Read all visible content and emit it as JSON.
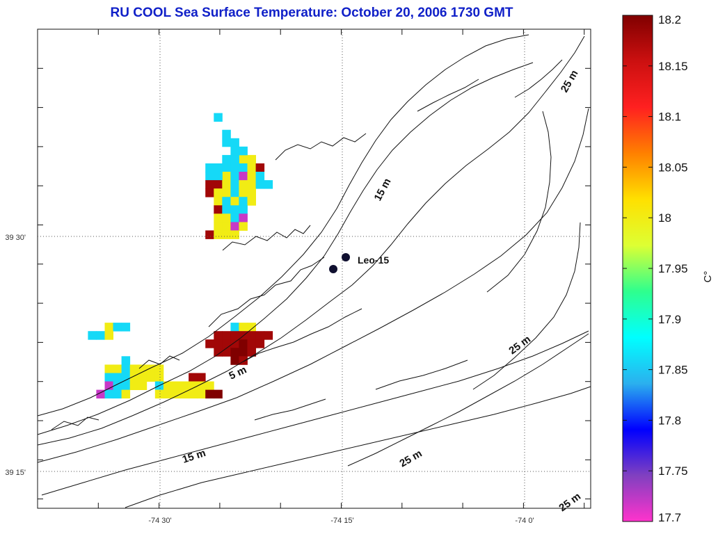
{
  "chart_data": {
    "type": "heatmap",
    "title": "RU COOL  Sea Surface Temperature:  October 20, 2006 1730 GMT",
    "x_ticks": [
      "-74 30'",
      "-74 15'",
      "-74 0'"
    ],
    "y_ticks": [
      "39 30'",
      "39 15'"
    ],
    "colorbar": {
      "unit": "C°",
      "min": 17.7,
      "max": 18.2,
      "ticks": [
        "18.2",
        "18.15",
        "18.1",
        "18.05",
        "18",
        "17.95",
        "17.9",
        "17.85",
        "17.8",
        "17.75",
        "17.7"
      ],
      "colors": [
        "#ff33cc",
        "#8040c0",
        "#0000ff",
        "#2bb0ee",
        "#00ffff",
        "#2eff8e",
        "#ddff33",
        "#ffe000",
        "#ff8000",
        "#ff2020",
        "#cc1010",
        "#800000"
      ]
    },
    "depth_labels": [
      "5 m",
      "15 m",
      "15 m",
      "25 m",
      "25 m",
      "25 m",
      "25 m"
    ],
    "station": "Leo-15",
    "sst_cells": [
      {
        "c": 21,
        "r": 10,
        "t": 17.86
      },
      {
        "c": 22,
        "r": 12,
        "t": 17.86
      },
      {
        "c": 22,
        "r": 13,
        "t": 17.86
      },
      {
        "c": 23,
        "r": 13,
        "t": 17.86
      },
      {
        "c": 24,
        "r": 15,
        "t": 18.0
      },
      {
        "c": 25,
        "r": 15,
        "t": 18.0
      },
      {
        "c": 23,
        "r": 15,
        "t": 17.86
      },
      {
        "c": 22,
        "r": 15,
        "t": 17.86
      },
      {
        "c": 24,
        "r": 14,
        "t": 17.86
      },
      {
        "c": 23,
        "r": 14,
        "t": 17.86
      },
      {
        "c": 24,
        "r": 16,
        "t": 17.86
      },
      {
        "c": 23,
        "r": 16,
        "t": 17.86
      },
      {
        "c": 25,
        "r": 16,
        "t": 18.0
      },
      {
        "c": 22,
        "r": 16,
        "t": 17.86
      },
      {
        "c": 21,
        "r": 16,
        "t": 17.86
      },
      {
        "c": 20,
        "r": 16,
        "t": 17.86
      },
      {
        "c": 26,
        "r": 16,
        "t": 18.18
      },
      {
        "c": 22,
        "r": 17,
        "t": 18.0
      },
      {
        "c": 21,
        "r": 17,
        "t": 17.86
      },
      {
        "c": 20,
        "r": 17,
        "t": 17.86
      },
      {
        "c": 23,
        "r": 17,
        "t": 17.86
      },
      {
        "c": 24,
        "r": 17,
        "t": 17.72
      },
      {
        "c": 25,
        "r": 17,
        "t": 18.0
      },
      {
        "c": 26,
        "r": 17,
        "t": 17.86
      },
      {
        "c": 20,
        "r": 18,
        "t": 18.18
      },
      {
        "c": 21,
        "r": 18,
        "t": 18.18
      },
      {
        "c": 22,
        "r": 18,
        "t": 18.0
      },
      {
        "c": 23,
        "r": 18,
        "t": 17.86
      },
      {
        "c": 24,
        "r": 18,
        "t": 18.0
      },
      {
        "c": 25,
        "r": 18,
        "t": 18.0
      },
      {
        "c": 26,
        "r": 18,
        "t": 17.86
      },
      {
        "c": 27,
        "r": 18,
        "t": 17.86
      },
      {
        "c": 20,
        "r": 19,
        "t": 18.18
      },
      {
        "c": 21,
        "r": 19,
        "t": 18.0
      },
      {
        "c": 22,
        "r": 19,
        "t": 18.0
      },
      {
        "c": 23,
        "r": 19,
        "t": 17.86
      },
      {
        "c": 24,
        "r": 19,
        "t": 18.0
      },
      {
        "c": 25,
        "r": 19,
        "t": 18.0
      },
      {
        "c": 21,
        "r": 20,
        "t": 18.0
      },
      {
        "c": 22,
        "r": 20,
        "t": 17.86
      },
      {
        "c": 23,
        "r": 20,
        "t": 18.0
      },
      {
        "c": 24,
        "r": 20,
        "t": 17.86
      },
      {
        "c": 25,
        "r": 20,
        "t": 18.0
      },
      {
        "c": 21,
        "r": 21,
        "t": 18.18
      },
      {
        "c": 22,
        "r": 21,
        "t": 17.86
      },
      {
        "c": 23,
        "r": 21,
        "t": 17.86
      },
      {
        "c": 24,
        "r": 21,
        "t": 17.86
      },
      {
        "c": 21,
        "r": 22,
        "t": 18.0
      },
      {
        "c": 22,
        "r": 22,
        "t": 18.0
      },
      {
        "c": 23,
        "r": 22,
        "t": 17.86
      },
      {
        "c": 24,
        "r": 22,
        "t": 17.72
      },
      {
        "c": 21,
        "r": 23,
        "t": 18.0
      },
      {
        "c": 22,
        "r": 23,
        "t": 18.0
      },
      {
        "c": 23,
        "r": 23,
        "t": 17.72
      },
      {
        "c": 24,
        "r": 23,
        "t": 18.0
      },
      {
        "c": 20,
        "r": 24,
        "t": 18.18
      },
      {
        "c": 21,
        "r": 24,
        "t": 18.0
      },
      {
        "c": 22,
        "r": 24,
        "t": 18.0
      },
      {
        "c": 23,
        "r": 24,
        "t": 18.0
      },
      {
        "c": 23,
        "r": 35,
        "t": 17.86
      },
      {
        "c": 24,
        "r": 35,
        "t": 18.0
      },
      {
        "c": 25,
        "r": 35,
        "t": 18.0
      },
      {
        "c": 21,
        "r": 36,
        "t": 18.18
      },
      {
        "c": 22,
        "r": 36,
        "t": 18.18
      },
      {
        "c": 23,
        "r": 36,
        "t": 18.18
      },
      {
        "c": 24,
        "r": 36,
        "t": 18.18
      },
      {
        "c": 25,
        "r": 36,
        "t": 18.18
      },
      {
        "c": 26,
        "r": 36,
        "t": 18.18
      },
      {
        "c": 27,
        "r": 36,
        "t": 18.18
      },
      {
        "c": 20,
        "r": 37,
        "t": 18.18
      },
      {
        "c": 21,
        "r": 37,
        "t": 18.18
      },
      {
        "c": 22,
        "r": 37,
        "t": 18.18
      },
      {
        "c": 23,
        "r": 37,
        "t": 18.18
      },
      {
        "c": 24,
        "r": 37,
        "t": 18.2
      },
      {
        "c": 25,
        "r": 37,
        "t": 18.18
      },
      {
        "c": 26,
        "r": 37,
        "t": 18.18
      },
      {
        "c": 21,
        "r": 38,
        "t": 18.18
      },
      {
        "c": 22,
        "r": 38,
        "t": 18.18
      },
      {
        "c": 23,
        "r": 38,
        "t": 18.2
      },
      {
        "c": 24,
        "r": 38,
        "t": 18.2
      },
      {
        "c": 25,
        "r": 38,
        "t": 18.18
      },
      {
        "c": 23,
        "r": 39,
        "t": 18.2
      },
      {
        "c": 24,
        "r": 39,
        "t": 18.18
      },
      {
        "c": 8,
        "r": 35,
        "t": 18.0
      },
      {
        "c": 9,
        "r": 35,
        "t": 17.86
      },
      {
        "c": 10,
        "r": 35,
        "t": 17.86
      },
      {
        "c": 6,
        "r": 36,
        "t": 17.86
      },
      {
        "c": 7,
        "r": 36,
        "t": 17.86
      },
      {
        "c": 8,
        "r": 36,
        "t": 18.0
      },
      {
        "c": 10,
        "r": 39,
        "t": 17.86
      },
      {
        "c": 8,
        "r": 40,
        "t": 18.0
      },
      {
        "c": 9,
        "r": 40,
        "t": 18.0
      },
      {
        "c": 10,
        "r": 40,
        "t": 17.86
      },
      {
        "c": 11,
        "r": 40,
        "t": 18.0
      },
      {
        "c": 12,
        "r": 40,
        "t": 18.0
      },
      {
        "c": 13,
        "r": 40,
        "t": 18.0
      },
      {
        "c": 14,
        "r": 40,
        "t": 18.0
      },
      {
        "c": 8,
        "r": 41,
        "t": 17.86
      },
      {
        "c": 9,
        "r": 41,
        "t": 17.86
      },
      {
        "c": 10,
        "r": 41,
        "t": 17.86
      },
      {
        "c": 11,
        "r": 41,
        "t": 18.0
      },
      {
        "c": 12,
        "r": 41,
        "t": 18.0
      },
      {
        "c": 13,
        "r": 41,
        "t": 18.0
      },
      {
        "c": 14,
        "r": 41,
        "t": 18.0
      },
      {
        "c": 18,
        "r": 41,
        "t": 18.18
      },
      {
        "c": 19,
        "r": 41,
        "t": 18.18
      },
      {
        "c": 8,
        "r": 42,
        "t": 17.72
      },
      {
        "c": 9,
        "r": 42,
        "t": 17.86
      },
      {
        "c": 10,
        "r": 42,
        "t": 17.86
      },
      {
        "c": 11,
        "r": 42,
        "t": 18.0
      },
      {
        "c": 12,
        "r": 42,
        "t": 18.0
      },
      {
        "c": 14,
        "r": 42,
        "t": 17.86
      },
      {
        "c": 15,
        "r": 42,
        "t": 18.0
      },
      {
        "c": 16,
        "r": 42,
        "t": 18.0
      },
      {
        "c": 17,
        "r": 42,
        "t": 18.0
      },
      {
        "c": 18,
        "r": 42,
        "t": 18.0
      },
      {
        "c": 19,
        "r": 42,
        "t": 18.0
      },
      {
        "c": 20,
        "r": 42,
        "t": 18.0
      },
      {
        "c": 7,
        "r": 43,
        "t": 17.72
      },
      {
        "c": 8,
        "r": 43,
        "t": 17.86
      },
      {
        "c": 9,
        "r": 43,
        "t": 17.86
      },
      {
        "c": 10,
        "r": 43,
        "t": 18.0
      },
      {
        "c": 14,
        "r": 43,
        "t": 18.0
      },
      {
        "c": 15,
        "r": 43,
        "t": 18.0
      },
      {
        "c": 16,
        "r": 43,
        "t": 18.0
      },
      {
        "c": 17,
        "r": 43,
        "t": 18.0
      },
      {
        "c": 18,
        "r": 43,
        "t": 18.0
      },
      {
        "c": 19,
        "r": 43,
        "t": 18.0
      },
      {
        "c": 20,
        "r": 43,
        "t": 18.2
      },
      {
        "c": 21,
        "r": 43,
        "t": 18.2
      }
    ]
  }
}
